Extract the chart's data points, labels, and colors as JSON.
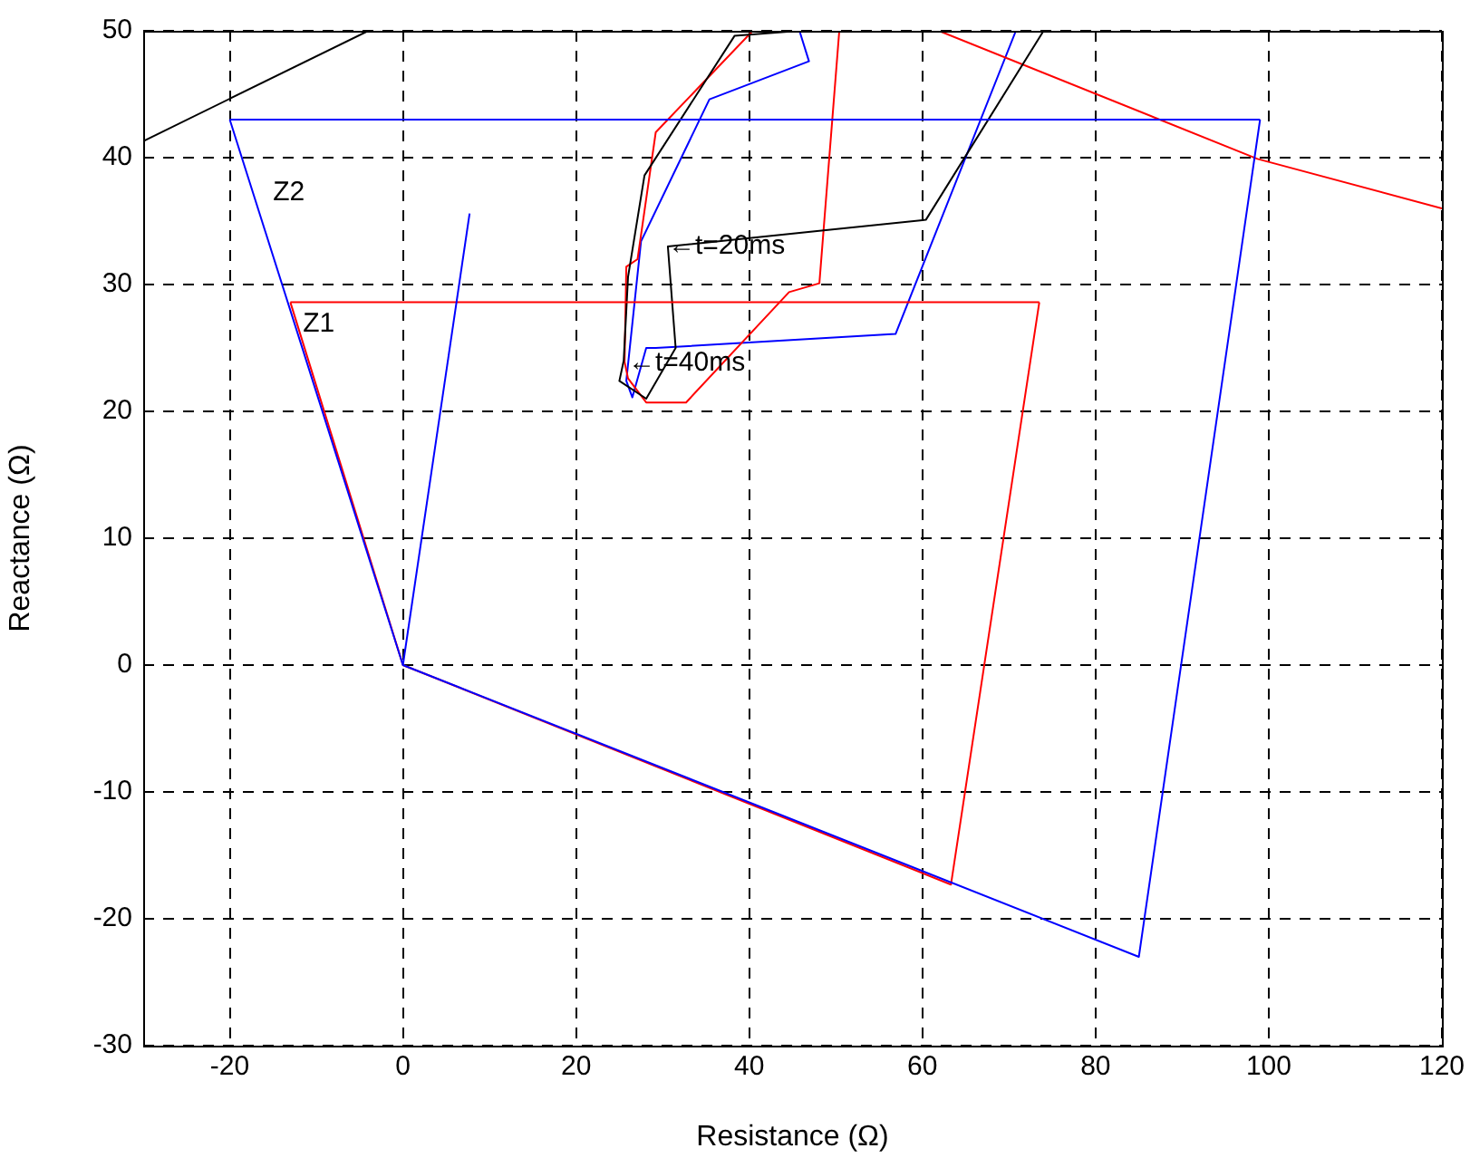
{
  "chart_data": {
    "type": "line",
    "xlabel": "Resistance (Ω)",
    "ylabel": "Reactance (Ω)",
    "xlim": [
      -30,
      120
    ],
    "xticks": [
      -20,
      0,
      20,
      40,
      60,
      80,
      100,
      120
    ],
    "ylim": [
      -30,
      50
    ],
    "yticks": [
      -30,
      -20,
      -10,
      0,
      10,
      20,
      30,
      40,
      50
    ],
    "grid": true,
    "legend": false,
    "marker": "none",
    "series": [
      {
        "color": "#0000ff",
        "x": [
          -20,
          0,
          85,
          99
        ],
        "values": [
          43,
          0,
          -23,
          43
        ]
      },
      {
        "color": "#0000ff",
        "x": [
          -20,
          99
        ],
        "values": [
          43,
          43
        ]
      },
      {
        "color": "#0000ff",
        "x": [
          0,
          7.7
        ],
        "values": [
          0,
          35.6
        ]
      },
      {
        "color": "#ff0000",
        "x": [
          -13,
          0,
          63.3,
          73.5
        ],
        "values": [
          28.6,
          0,
          -17.3,
          28.6
        ]
      },
      {
        "color": "#ff0000",
        "x": [
          -13,
          73.5
        ],
        "values": [
          28.6,
          28.6
        ]
      },
      {
        "color": "#000000",
        "x": [
          -30,
          -4
        ],
        "values": [
          41.3,
          50
        ]
      },
      {
        "color": "#000000",
        "x": [
          74,
          60.4,
          30.6,
          31.5,
          28.1,
          25,
          25.5,
          26,
          27.9,
          38.3,
          45.8
        ],
        "values": [
          50,
          35.1,
          33,
          25,
          21,
          22.4,
          24,
          30.6,
          38.6,
          49.6,
          50
        ]
      },
      {
        "color": "#ff0000",
        "x": [
          120,
          98.7,
          61.9
        ],
        "values": [
          36,
          39.9,
          50
        ]
      },
      {
        "color": "#ff0000",
        "x": [
          50.4,
          48.1,
          44.6,
          32.7,
          28.1,
          26,
          25.6,
          25.8,
          27.1,
          29.2,
          40.4
        ],
        "values": [
          50,
          30.1,
          29.4,
          20.7,
          20.7,
          22.6,
          23.9,
          31.4,
          32,
          42,
          50
        ]
      },
      {
        "color": "#0000ff",
        "x": [
          70.8,
          56.9,
          29.2,
          28.1,
          26.5,
          25.8,
          27.5,
          35.4,
          46.9,
          45.8
        ],
        "values": [
          50,
          26.1,
          25,
          25,
          21.1,
          22.4,
          33.4,
          44.6,
          47.6,
          50
        ]
      }
    ],
    "annotations": [
      "Z2",
      "Z1",
      {
        "text": "←t=20ms",
        "x": 30.6,
        "y": 33
      },
      {
        "text": "←t=40ms",
        "x": 26,
        "y": 23.8
      }
    ]
  }
}
